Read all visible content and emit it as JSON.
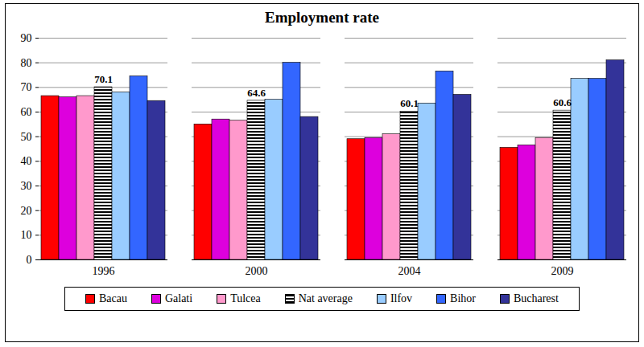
{
  "chart_data": {
    "type": "bar",
    "title": "Employment rate",
    "categories": [
      "1996",
      "2000",
      "2004",
      "2009"
    ],
    "ylim": [
      0,
      90
    ],
    "yticks": [
      0,
      10,
      20,
      30,
      40,
      50,
      60,
      70,
      80,
      90
    ],
    "grid": true,
    "legend": "bottom",
    "series": [
      {
        "name": "Bacau",
        "color": "#ff0000",
        "values": [
          66.5,
          55,
          49,
          45.5
        ]
      },
      {
        "name": "Galati",
        "color": "#dd00dd",
        "values": [
          66,
          57,
          49.5,
          46.5
        ]
      },
      {
        "name": "Tulcea",
        "color": "#ff99cc",
        "values": [
          66.5,
          56.5,
          51,
          49.5
        ]
      },
      {
        "name": "Nat average",
        "color": "#000000",
        "marker": "stripes",
        "data_labels": true,
        "values": [
          70.1,
          64.6,
          60.1,
          60.6
        ]
      },
      {
        "name": "Ilfov",
        "color": "#99ccff",
        "values": [
          68,
          65,
          63.5,
          73.5
        ]
      },
      {
        "name": "Bihor",
        "color": "#3366ff",
        "values": [
          74.5,
          80,
          76.5,
          73.5
        ]
      },
      {
        "name": "Bucharest",
        "color": "#333399",
        "values": [
          64.5,
          58,
          67,
          81
        ]
      }
    ]
  }
}
